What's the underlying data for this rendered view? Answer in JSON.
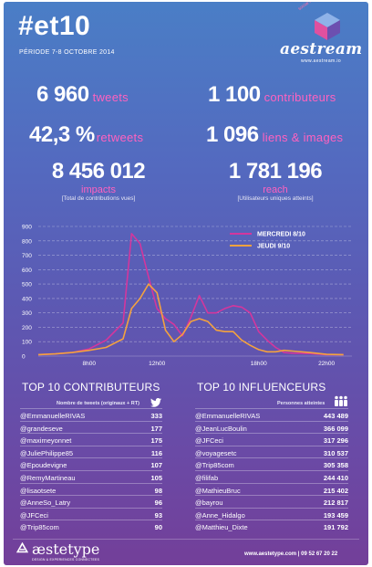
{
  "header": {
    "hashtag": "#et10",
    "period": "PÉRIODE 7-8 OCTOBRE 2014",
    "logo_arc": "social media analytics",
    "logo_name": "aestream",
    "logo_url": "www.aestream.io"
  },
  "stats": {
    "tweets": {
      "value": "6 960",
      "label": "tweets"
    },
    "contributors": {
      "value": "1 100",
      "label": "contributeurs"
    },
    "retweets": {
      "value": "42,3 %",
      "label": "retweets"
    },
    "links": {
      "value": "1 096",
      "label": "liens & images"
    },
    "impacts": {
      "value": "8 456 012",
      "label": "impacts",
      "note": "[Total de contributions vues]"
    },
    "reach": {
      "value": "1 781 196",
      "label": "reach",
      "note": "[Utilisateurs uniques atteints]"
    }
  },
  "chart_data": {
    "type": "line",
    "x_ticks": [
      "8h00",
      "12h00",
      "18h00",
      "22h00"
    ],
    "x": [
      5,
      6,
      7,
      8,
      9,
      10,
      10.5,
      11,
      11.5,
      12,
      12.5,
      13,
      13.5,
      14,
      14.5,
      15,
      15.5,
      16,
      16.5,
      17,
      17.5,
      18,
      18.5,
      19,
      19.5,
      20,
      21,
      22,
      23
    ],
    "ylim": [
      0,
      900
    ],
    "y_ticks": [
      0,
      100,
      200,
      300,
      400,
      500,
      600,
      700,
      800,
      900
    ],
    "series": [
      {
        "name": "MERCREDI 8/10",
        "color": "#d4369d",
        "values": [
          10,
          15,
          25,
          50,
          110,
          230,
          850,
          780,
          550,
          330,
          260,
          220,
          140,
          270,
          420,
          300,
          300,
          330,
          350,
          340,
          300,
          170,
          110,
          60,
          25,
          20,
          18,
          10,
          10
        ]
      },
      {
        "name": "JEUDI 9/10",
        "color": "#f4a23e",
        "values": [
          10,
          15,
          25,
          40,
          60,
          120,
          330,
          400,
          500,
          440,
          180,
          100,
          150,
          240,
          260,
          240,
          180,
          170,
          170,
          110,
          75,
          45,
          30,
          30,
          40,
          35,
          25,
          12,
          10
        ]
      }
    ]
  },
  "contributors": {
    "title": "TOP 10 CONTRIBUTEURS",
    "column": "Nombre de tweets (originaux + RT)",
    "rows": [
      {
        "name": "@EmmanuelleRIVAS",
        "value": "333"
      },
      {
        "name": "@grandeseve",
        "value": "177"
      },
      {
        "name": "@maximeyonnet",
        "value": "175"
      },
      {
        "name": "@JuliePhilippe85",
        "value": "116"
      },
      {
        "name": "@Epoudevigne",
        "value": "107"
      },
      {
        "name": "@RemyMartineau",
        "value": "105"
      },
      {
        "name": "@lisaotsete",
        "value": "98"
      },
      {
        "name": "@AnneSo_Latry",
        "value": "96"
      },
      {
        "name": "@JFCeci",
        "value": "93"
      },
      {
        "name": "@Trip85com",
        "value": "90"
      }
    ]
  },
  "influencers": {
    "title": "TOP 10 INFLUENCEURS",
    "column": "Personnes atteintes",
    "rows": [
      {
        "name": "@EmmanuelleRIVAS",
        "value": "443 489"
      },
      {
        "name": "@JeanLucBoulin",
        "value": "366 099"
      },
      {
        "name": "@JFCeci",
        "value": "317 296"
      },
      {
        "name": "@voyagesetc",
        "value": "310 537"
      },
      {
        "name": "@Trip85com",
        "value": "305 358"
      },
      {
        "name": "@filifab",
        "value": "244 410"
      },
      {
        "name": "@MathieuBruc",
        "value": "215 402"
      },
      {
        "name": "@bayrou",
        "value": "212 817"
      },
      {
        "name": "@Anne_Hidalgo",
        "value": "193 459"
      },
      {
        "name": "@Matthieu_Dixte",
        "value": "191 792"
      }
    ]
  },
  "footer": {
    "brand": "æstetype",
    "tagline": "DESIGN & EXPERIENCES CONNECTEES",
    "contact": "www.aestetype.com | 09 52 67 20 22"
  },
  "icons": {
    "twitter": "twitter-bird-icon",
    "people": "people-group-icon",
    "logo": "cube-logo-icon"
  }
}
